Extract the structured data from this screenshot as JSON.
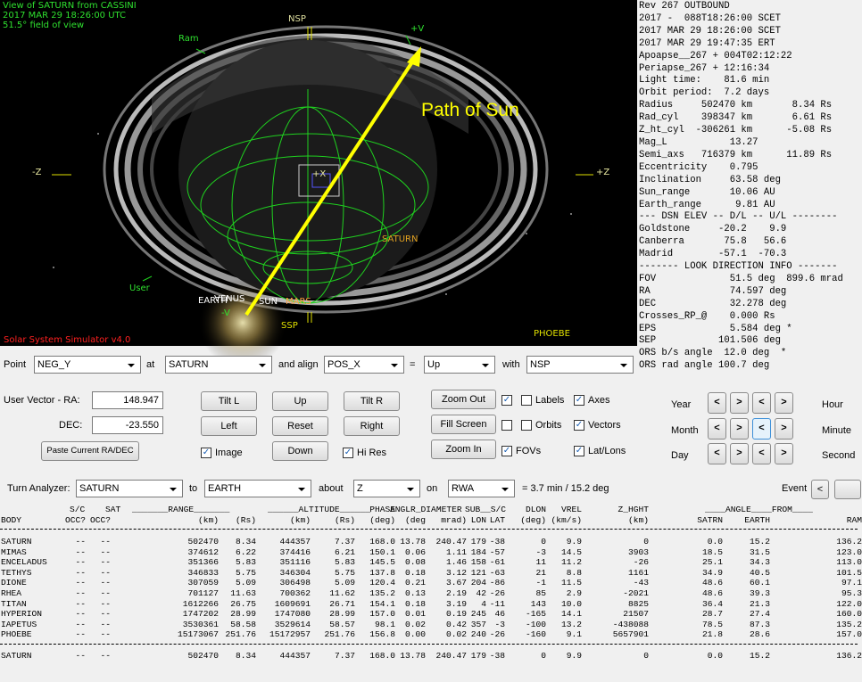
{
  "view": {
    "title_lines": [
      "View of SATURN from CASSINI",
      "2017 MAR 29 18:26:00 UTC",
      "51.5° field of view"
    ],
    "labels": [
      "Ram",
      "NSP",
      "+V",
      "Path of Sun",
      "-Z",
      "+Z",
      "+X",
      "SATURN",
      "User",
      "EARTH",
      "VENUS",
      "SUN",
      "MARS",
      "-V",
      "SSP",
      "PHOEBE",
      "Solar System Simulator v4.0"
    ]
  },
  "info_panel": {
    "lines": [
      "Rev 267 OUTBOUND",
      "2017 -  088T18:26:00 SCET",
      "2017 MAR 29 18:26:00 SCET",
      "2017 MAR 29 19:47:35 ERT",
      "Apoapse__267 + 004T02:12:22",
      "Periapse_267 + 12:16:34",
      "Light time:    81.6 min",
      "Orbit period:  7.2 days",
      "Radius     502470 km       8.34 Rs",
      "Rad_cyl    398347 km       6.61 Rs",
      "Z_ht_cyl  -306261 km      -5.08 Rs",
      "Mag_L           13.27",
      "Semi_axs   716379 km      11.89 Rs",
      "Eccentricity    0.795",
      "Inclination     63.58 deg",
      "Sun_range       10.06 AU",
      "Earth_range      9.81 AU",
      "--- DSN ELEV -- D/L -- U/L --------",
      "Goldstone     -20.2    9.9",
      "Canberra       75.8   56.6",
      "Madrid        -57.1  -70.3",
      "------- LOOK DIRECTION INFO -------",
      "FOV             51.5 deg  899.6 mrad",
      "RA              74.597 deg",
      "DEC             32.278 deg",
      "Crosses_RP_@    0.000 Rs",
      "EPS             5.584 deg *",
      "SEP           101.506 deg",
      "ORS b/s angle  12.0 deg  *",
      "ORS rad angle 100.7 deg"
    ]
  },
  "pointing": {
    "point_label": "Point",
    "point": "NEG_Y",
    "at_label": "at",
    "at": "SATURN",
    "align_label": "and align",
    "align": "POS_X",
    "equals": "=",
    "direction": "Up",
    "with_label": "with",
    "with": "NSP"
  },
  "user_vector": {
    "ra_label": "User Vector - RA:",
    "ra": "148.947",
    "dec_label": "DEC:",
    "dec": "-23.550",
    "paste": "Paste Current RA/DEC"
  },
  "buttons": [
    "Tilt L",
    "Up",
    "Tilt R",
    "Left",
    "Reset",
    "Right",
    "Down"
  ],
  "zoom": [
    "Zoom Out",
    "Fill Screen",
    "Zoom In"
  ],
  "checkboxes": [
    {
      "checked": true
    },
    {
      "label": "Labels",
      "checked": false
    },
    {
      "label": "Axes",
      "checked": true
    },
    {
      "checked": false
    },
    {
      "label": "Orbits",
      "checked": false
    },
    {
      "label": "Vectors",
      "checked": true
    },
    {
      "label": "FOVs",
      "checked": true
    },
    {
      "label": "Lat/Lons",
      "checked": true
    },
    {
      "label": "Image",
      "checked": true
    },
    {
      "label": "Hi Res",
      "checked": true
    }
  ],
  "time": {
    "left_units": [
      "Year",
      "Month",
      "Day"
    ],
    "right_units": [
      "Hour",
      "Minute",
      "Second"
    ],
    "prev": "<",
    "next": ">"
  },
  "turn": {
    "label": "Turn Analyzer:",
    "from": "SATURN",
    "to_label": "to",
    "to": "EARTH",
    "about_label": "about",
    "about": "Z",
    "on_label": "on",
    "on": "RWA",
    "result": "= 3.7 min / 15.2 deg",
    "event": "Event",
    "prev": "<"
  },
  "table": {
    "header_groups": [
      "S/C",
      "SAT",
      "_______RANGE_______",
      "______ALTITUDE______",
      "PHASE",
      "ANGLR_DIAMETER",
      "SUB__S/C",
      "DLON",
      "VREL",
      "Z_HGHT",
      "____ANGLE____FROM____"
    ],
    "header": [
      "BODY",
      "OCC?",
      "OCC?",
      "(km)",
      "(Rs)",
      "(km)",
      "(Rs)",
      "(deg)",
      "(deg",
      "mrad)",
      "LON",
      "LAT",
      "(deg)",
      "(km/s)",
      "(km)",
      "SATRN",
      "EARTH",
      "RAM"
    ],
    "rows": [
      [
        "SATURN",
        "--",
        "--",
        "502470",
        "8.34",
        "444357",
        "7.37",
        "168.0",
        "13.78",
        "240.47",
        "179",
        "-38",
        "0",
        "9.9",
        "0",
        "0.0",
        "15.2",
        "136.2"
      ],
      [
        "MIMAS",
        "--",
        "--",
        "374612",
        "6.22",
        "374416",
        "6.21",
        "150.1",
        "0.06",
        "1.11",
        "184",
        "-57",
        "-3",
        "14.5",
        "3903",
        "18.5",
        "31.5",
        "123.0"
      ],
      [
        "ENCELADUS",
        "--",
        "--",
        "351366",
        "5.83",
        "351116",
        "5.83",
        "145.5",
        "0.08",
        "1.46",
        "158",
        "-61",
        "11",
        "11.2",
        "-26",
        "25.1",
        "34.3",
        "113.0"
      ],
      [
        "TETHYS",
        "--",
        "--",
        "346833",
        "5.75",
        "346304",
        "5.75",
        "137.8",
        "0.18",
        "3.12",
        "121",
        "-63",
        "21",
        "8.8",
        "1161",
        "34.9",
        "40.5",
        "101.5"
      ],
      [
        "DIONE",
        "--",
        "--",
        "307059",
        "5.09",
        "306498",
        "5.09",
        "120.4",
        "0.21",
        "3.67",
        "204",
        "-86",
        "-1",
        "11.5",
        "-43",
        "48.6",
        "60.1",
        "97.1"
      ],
      [
        "RHEA",
        "--",
        "--",
        "701127",
        "11.63",
        "700362",
        "11.62",
        "135.2",
        "0.13",
        "2.19",
        "42",
        "-26",
        "85",
        "2.9",
        "-2021",
        "48.6",
        "39.3",
        "95.3"
      ],
      [
        "TITAN",
        "--",
        "--",
        "1612266",
        "26.75",
        "1609691",
        "26.71",
        "154.1",
        "0.18",
        "3.19",
        "4",
        "-11",
        "143",
        "10.0",
        "8825",
        "36.4",
        "21.3",
        "122.0"
      ],
      [
        "HYPERION",
        "--",
        "--",
        "1747202",
        "28.99",
        "1747080",
        "28.99",
        "157.0",
        "0.01",
        "0.19",
        "245",
        "46",
        "-165",
        "14.1",
        "21507",
        "28.7",
        "27.4",
        "160.0"
      ],
      [
        "IAPETUS",
        "--",
        "--",
        "3530361",
        "58.58",
        "3529614",
        "58.57",
        "98.1",
        "0.02",
        "0.42",
        "357",
        "-3",
        "-100",
        "13.2",
        "-438088",
        "78.5",
        "87.3",
        "135.2"
      ],
      [
        "PHOEBE",
        "--",
        "--",
        "15173067",
        "251.76",
        "15172957",
        "251.76",
        "156.8",
        "0.00",
        "0.02",
        "240",
        "-26",
        "-160",
        "9.1",
        "5657901",
        "21.8",
        "28.6",
        "157.0"
      ]
    ],
    "footer_row": [
      "SATURN",
      "--",
      "--",
      "502470",
      "8.34",
      "444357",
      "7.37",
      "168.0",
      "13.78",
      "240.47",
      "179",
      "-38",
      "0",
      "9.9",
      "0",
      "0.0",
      "15.2",
      "136.2"
    ]
  }
}
